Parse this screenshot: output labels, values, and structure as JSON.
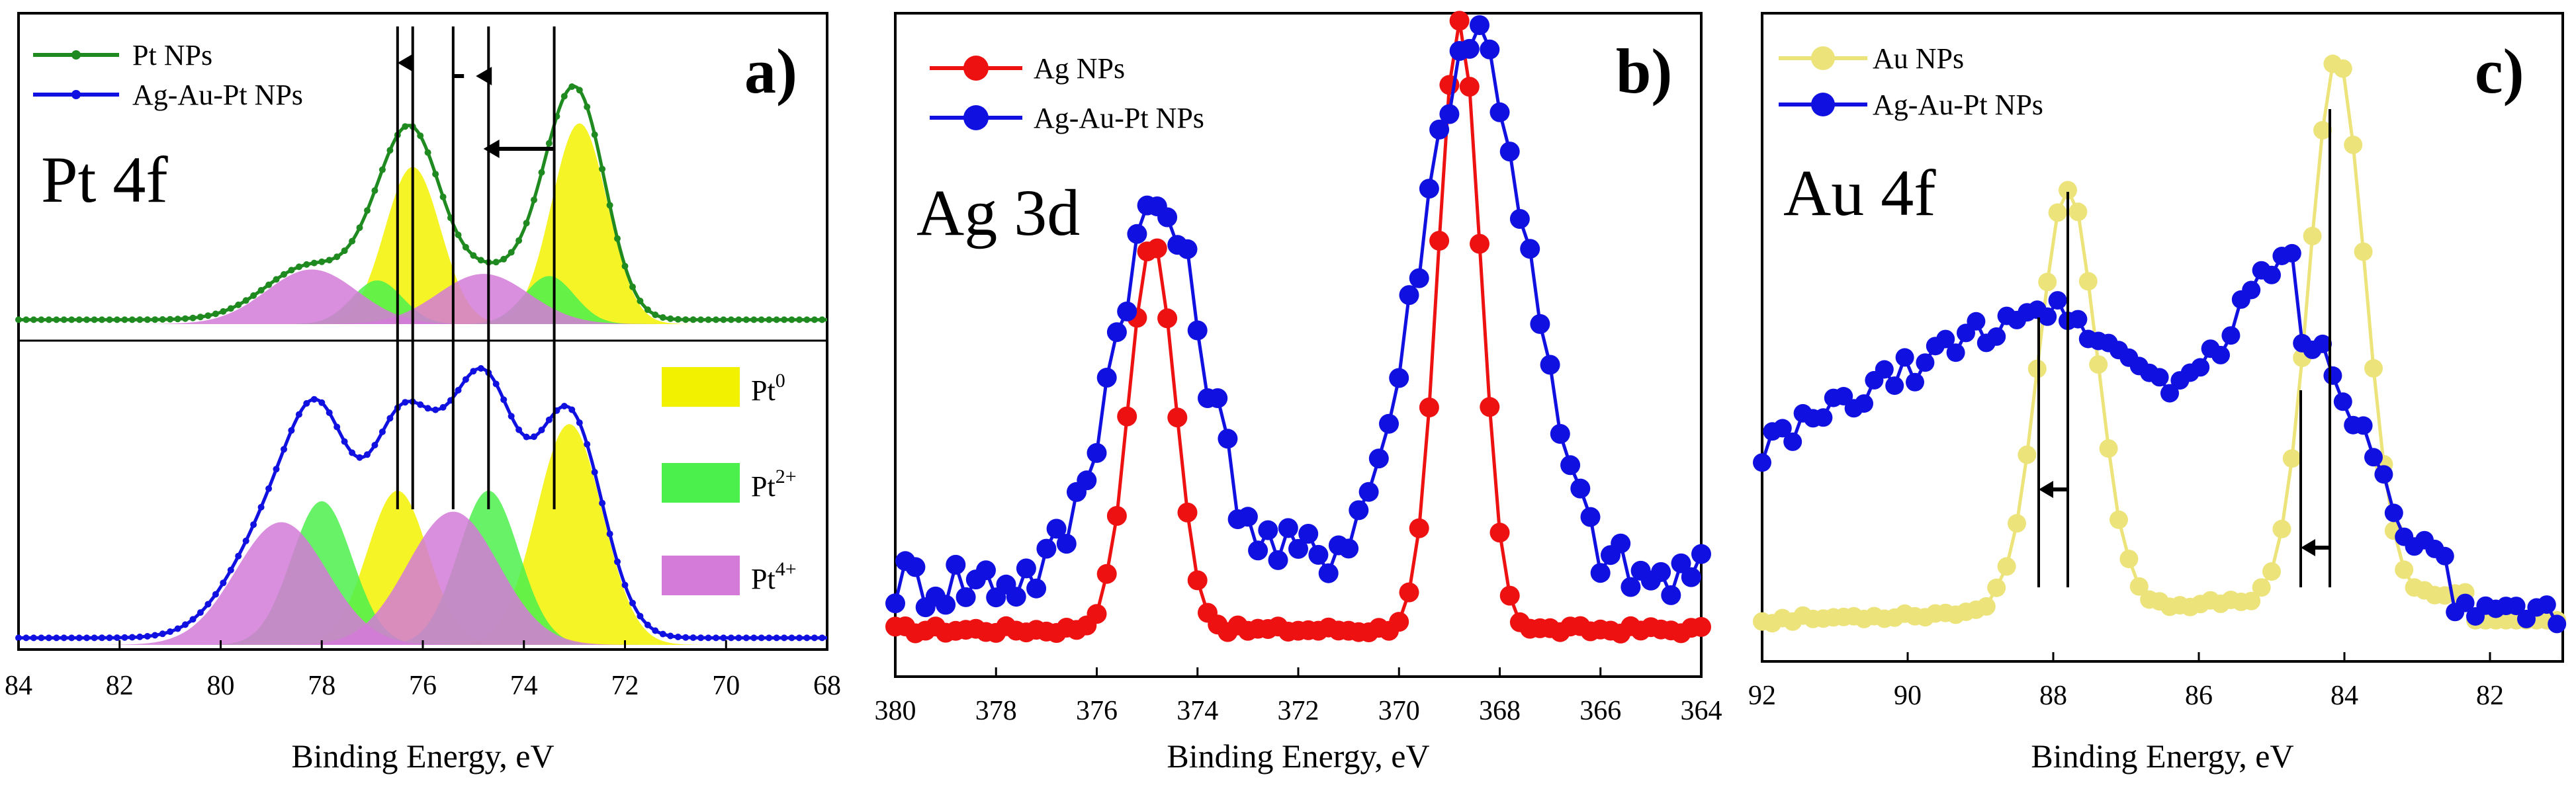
{
  "colors": {
    "pt_np": "#1f8a1f",
    "alloy": "#1010e0",
    "ag_np": "#ee1111",
    "au_np": "#ece47a",
    "pt0": "#f2f200",
    "pt2": "#4cf04c",
    "pt4": "#d47ad8",
    "gray": "#9a9a9a"
  },
  "chart_data": [
    {
      "panel": "a)",
      "type": "line",
      "title": "Pt 4f",
      "xlabel": "Binding Energy, eV",
      "xlim": [
        84,
        68
      ],
      "xticks": [
        "84",
        "82",
        "80",
        "78",
        "76",
        "74",
        "72",
        "70",
        "68"
      ],
      "legend_top": [
        "Pt NPs",
        "Ag-Au-Pt NPs"
      ],
      "legend_components": [
        {
          "base": "Pt",
          "sup": "0"
        },
        {
          "base": "Pt",
          "sup": "2+"
        },
        {
          "base": "Pt",
          "sup": "4+"
        }
      ],
      "top_peaks": [
        {
          "state": "Pt0",
          "center": 76.2,
          "amp": 0.72,
          "width": 0.55
        },
        {
          "state": "Pt0",
          "center": 72.9,
          "amp": 0.92,
          "width": 0.55
        },
        {
          "state": "Pt2+",
          "center": 76.9,
          "amp": 0.2,
          "width": 0.5
        },
        {
          "state": "Pt2+",
          "center": 73.5,
          "amp": 0.22,
          "width": 0.5
        },
        {
          "state": "Pt4+",
          "center": 78.2,
          "amp": 0.25,
          "width": 0.9
        },
        {
          "state": "Pt4+",
          "center": 74.8,
          "amp": 0.23,
          "width": 0.9
        }
      ],
      "bottom_peaks": [
        {
          "state": "Pt0",
          "center": 76.5,
          "amp": 0.44,
          "width": 0.6
        },
        {
          "state": "Pt0",
          "center": 73.1,
          "amp": 0.63,
          "width": 0.65
        },
        {
          "state": "Pt2+",
          "center": 78.0,
          "amp": 0.41,
          "width": 0.6
        },
        {
          "state": "Pt2+",
          "center": 74.7,
          "amp": 0.44,
          "width": 0.6
        },
        {
          "state": "Pt4+",
          "center": 78.8,
          "amp": 0.35,
          "width": 0.9
        },
        {
          "state": "Pt4+",
          "center": 75.4,
          "amp": 0.38,
          "width": 0.9
        }
      ],
      "reference_lines_ev": [
        76.5,
        76.2,
        75.4,
        74.7,
        73.4
      ]
    },
    {
      "panel": "b)",
      "type": "line",
      "title": "Ag 3d",
      "xlabel": "Binding Energy, eV",
      "xlim": [
        380,
        364
      ],
      "xticks": [
        "380",
        "378",
        "376",
        "374",
        "372",
        "370",
        "368",
        "366",
        "364"
      ],
      "series": [
        {
          "name": "Ag NPs",
          "peaks": [
            {
              "center": 374.9,
              "amp": 0.72,
              "width": 0.45
            },
            {
              "center": 368.8,
              "amp": 1.12,
              "width": 0.42
            }
          ],
          "baseline": 0.04
        },
        {
          "name": "Ag-Au-Pt NPs",
          "peaks": [
            {
              "center": 374.8,
              "amp": 0.68,
              "width": 0.9
            },
            {
              "center": 368.5,
              "amp": 1.0,
              "width": 1.05
            }
          ],
          "baseline": 0.13
        }
      ]
    },
    {
      "panel": "c)",
      "type": "line",
      "title": "Au 4f",
      "xlabel": "Binding Energy, eV",
      "xlim": [
        92,
        81
      ],
      "xticks": [
        "92",
        "90",
        "88",
        "86",
        "84",
        "82"
      ],
      "series": [
        {
          "name": "Au NPs",
          "peaks": [
            {
              "center": 87.8,
              "amp": 0.93,
              "width": 0.4
            },
            {
              "center": 84.1,
              "amp": 1.2,
              "width": 0.38
            }
          ],
          "baseline": 0.04
        },
        {
          "name": "Ag-Au-Pt NPs",
          "peaks": [
            {
              "center": 88.2,
              "amp": 0.45,
              "width": 1.5
            },
            {
              "center": 84.6,
              "amp": 0.55,
              "width": 0.9
            }
          ],
          "baseline": 0.12
        }
      ],
      "reference_lines_ev": [
        88.2,
        87.8,
        84.6,
        84.2
      ]
    }
  ]
}
